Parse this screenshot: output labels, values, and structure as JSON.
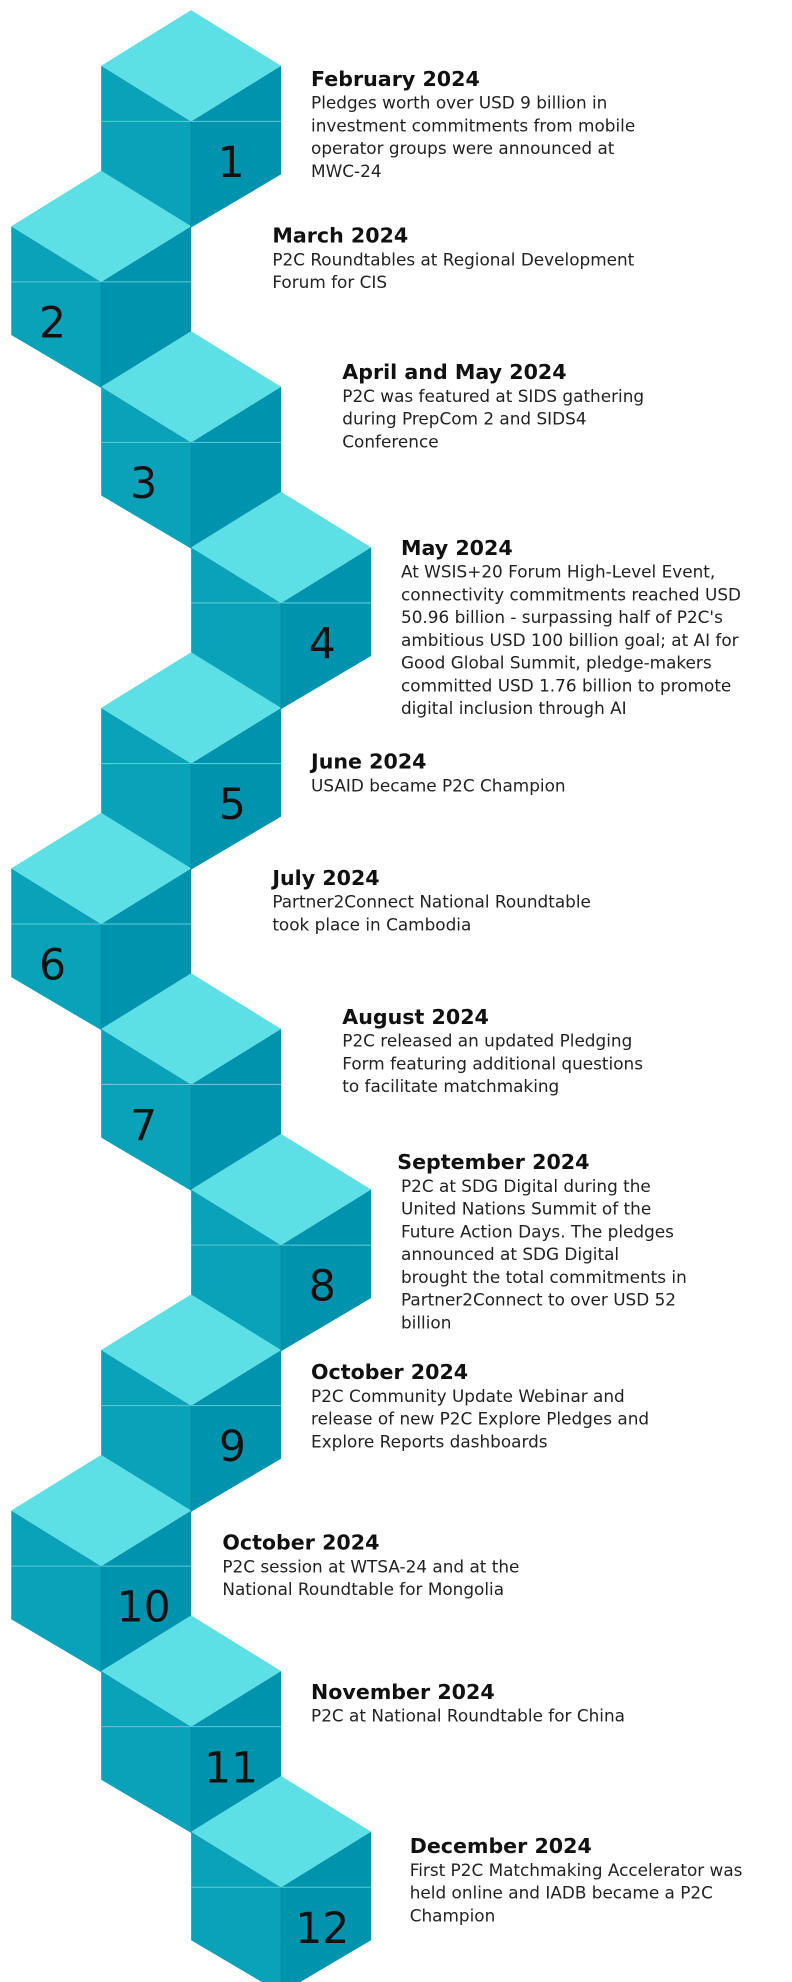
{
  "timeline": [
    {
      "number": "1",
      "title": "February 2024",
      "lines": [
        "Pledges worth over USD 9 billion in",
        "investment commitments from mobile",
        "operator groups were announced at",
        "MWC-24"
      ]
    },
    {
      "number": "2",
      "title": "March 2024",
      "lines": [
        "P2C Roundtables at Regional Development",
        "Forum for CIS"
      ]
    },
    {
      "number": "3",
      "title": "April and May 2024",
      "lines": [
        "P2C was featured at SIDS gathering",
        "during PrepCom 2 and SIDS4",
        "Conference"
      ]
    },
    {
      "number": "4",
      "title": "May 2024",
      "lines": [
        "At WSIS+20 Forum High-Level Event,",
        "connectivity commitments reached USD",
        "50.96 billion - surpassing half of P2C's",
        "ambitious USD 100 billion goal; at AI for",
        "Good Global Summit, pledge-makers",
        "committed USD 1.76 billion to promote",
        "digital inclusion through AI"
      ]
    },
    {
      "number": "5",
      "title": "June 2024",
      "lines": [
        "USAID became P2C Champion"
      ]
    },
    {
      "number": "6",
      "title": "July 2024",
      "lines": [
        "Partner2Connect National Roundtable",
        "took place in Cambodia"
      ]
    },
    {
      "number": "7",
      "title": "August 2024",
      "lines": [
        "P2C released an updated Pledging",
        "Form featuring additional questions",
        "to facilitate matchmaking"
      ]
    },
    {
      "number": "8",
      "title": "September 2024",
      "lines": [
        "P2C at SDG Digital during the",
        "United Nations Summit of the",
        "Future Action Days. The pledges",
        "announced at SDG Digital",
        "brought the total commitments in",
        "Partner2Connect to over USD 52",
        "billion"
      ]
    },
    {
      "number": "9",
      "title": "October 2024",
      "lines": [
        "P2C Community Update Webinar and",
        "release of new P2C Explore Pledges and",
        "Explore Reports dashboards"
      ]
    },
    {
      "number": "10",
      "title": "October 2024",
      "lines": [
        "P2C session at WTSA-24 and at the",
        "National Roundtable for Mongolia"
      ]
    },
    {
      "number": "11",
      "title": "November 2024",
      "lines": [
        "P2C at National Roundtable for China"
      ]
    },
    {
      "number": "12",
      "title": "December 2024",
      "lines": [
        "First P2C Matchmaking Accelerator was",
        "held online and IADB became a P2C",
        "Champion"
      ]
    }
  ]
}
